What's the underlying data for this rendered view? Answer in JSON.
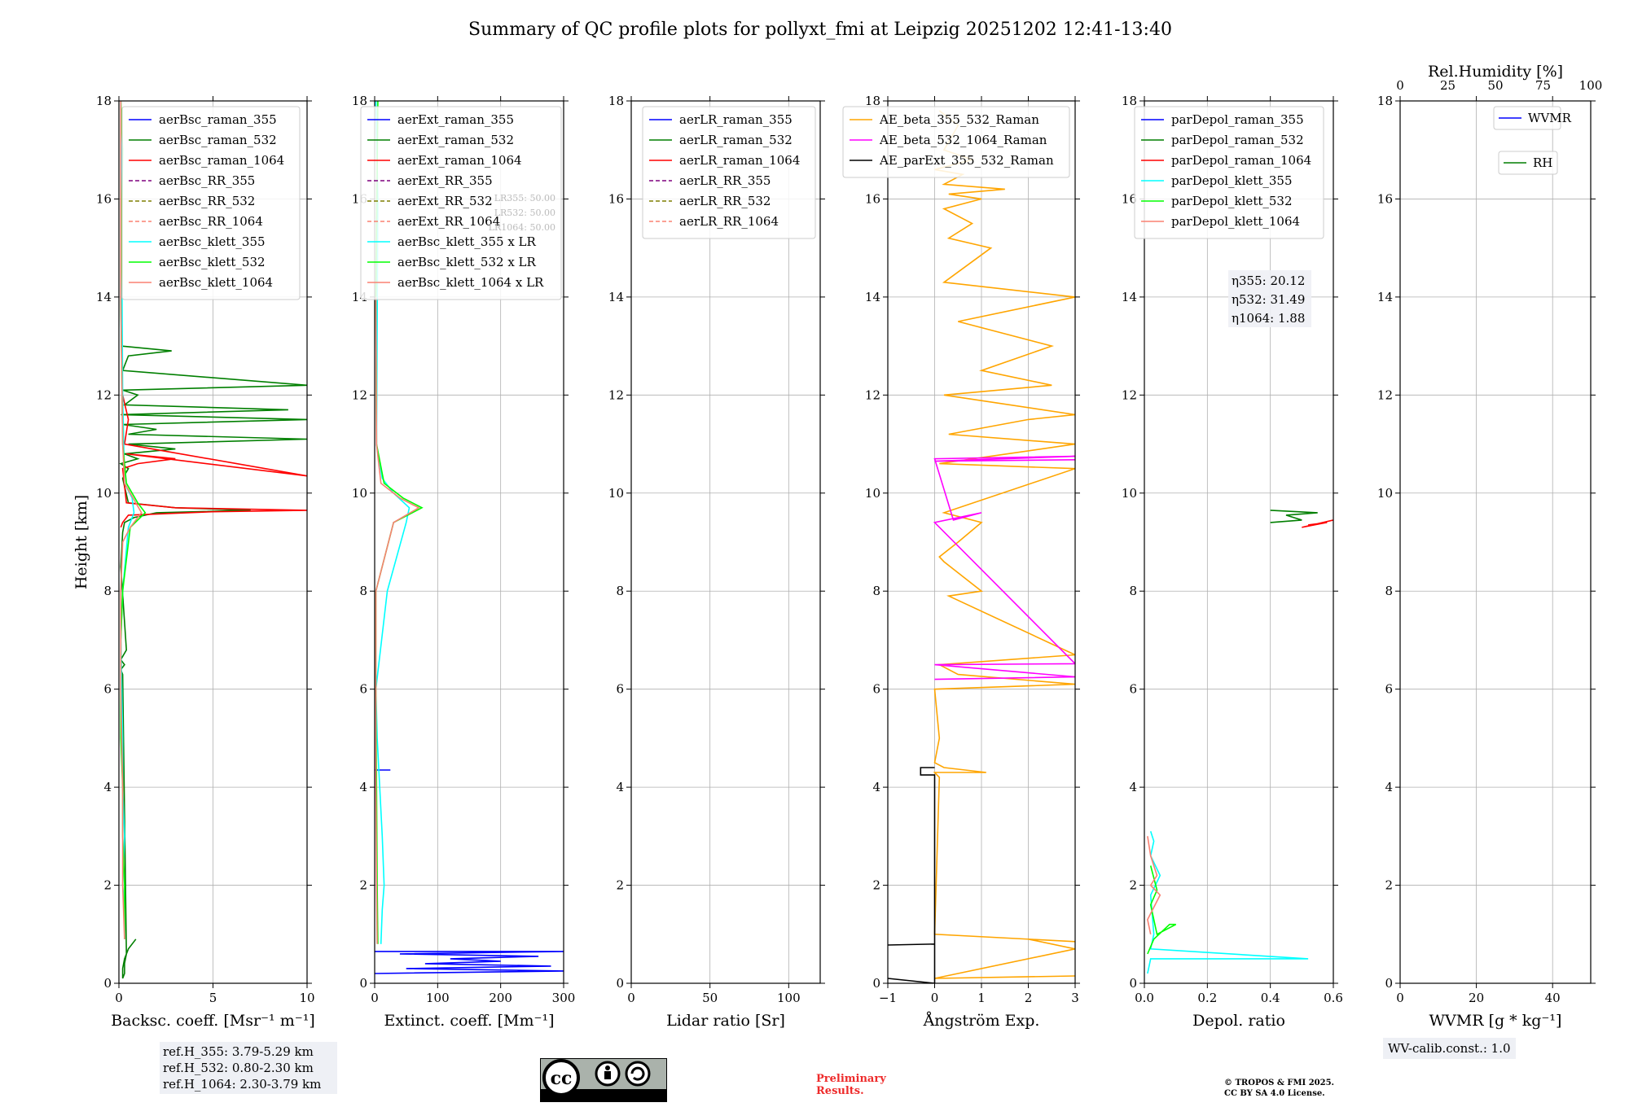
{
  "title": "Summary of QC profile plots for pollyxt_fmi at Leipzig 20251202 12:41-13:40",
  "colors": {
    "blue": "#0000ff",
    "green": "#007f00",
    "red": "#ff0000",
    "purple": "#7f007f",
    "olive": "#7f7f00",
    "salmon": "#fa8072",
    "cyan": "#00ffff",
    "lime": "#00ff00",
    "orange": "#ffa500",
    "magenta": "#ff00ff",
    "black": "#000000"
  },
  "chart_data": [
    {
      "type": "line",
      "id": "bsc",
      "xlabel": "Backsc. coeff. [Msr⁻¹ m⁻¹]",
      "ylabel": "Height [km]",
      "xlim": [
        0,
        10
      ],
      "ylim": [
        0,
        18
      ],
      "xticks": [
        {
          "v": 0,
          "label": "0"
        },
        {
          "v": 5,
          "label": "5"
        },
        {
          "v": 10,
          "label": "10"
        }
      ],
      "legend": [
        "aerBsc_raman_355",
        "aerBsc_raman_532",
        "aerBsc_raman_1064",
        "aerBsc_RR_355",
        "aerBsc_RR_532",
        "aerBsc_RR_1064",
        "aerBsc_klett_355",
        "aerBsc_klett_532",
        "aerBsc_klett_1064"
      ],
      "series": [
        {
          "name": "aerBsc_raman_532",
          "color": "green",
          "x": [
            0.9,
            0.5,
            0.3,
            0.2,
            0.2,
            0.3,
            0.3,
            0.4,
            0.2,
            0.1,
            0.3,
            0.1,
            0.4,
            0.1,
            0.2,
            0.3,
            0.8,
            2,
            7,
            3,
            0.5,
            0.2,
            0.5,
            0.1,
            1,
            0.3,
            3,
            0.5,
            10,
            0.5,
            2,
            0.2,
            10,
            0.1,
            9,
            0.3,
            1,
            0.2,
            10,
            0.2,
            0.5,
            2.8,
            0.1
          ],
          "y": [
            0.9,
            0.7,
            0.5,
            0.3,
            0.1,
            0.2,
            0.4,
            0.6,
            6.3,
            6.4,
            6.5,
            6.6,
            6.8,
            8.5,
            9.2,
            9.4,
            9.5,
            9.6,
            9.65,
            9.7,
            9.8,
            10.3,
            10.5,
            10.6,
            10.7,
            10.8,
            10.9,
            11,
            11.1,
            11.2,
            11.3,
            11.4,
            11.5,
            11.6,
            11.7,
            11.8,
            12,
            12.1,
            12.2,
            12.5,
            12.8,
            12.9,
            13
          ]
        },
        {
          "name": "aerBsc_raman_1064",
          "color": "red",
          "x": [
            0.1,
            0.2,
            0.5,
            5,
            10,
            3,
            0.4,
            0.2,
            1,
            3,
            0.4,
            10,
            0.3,
            0.5,
            0.2
          ],
          "y": [
            9.3,
            9.4,
            9.55,
            9.62,
            9.65,
            9.7,
            9.8,
            10.5,
            10.6,
            10.7,
            10.8,
            10.35,
            11,
            11.5,
            12
          ]
        },
        {
          "name": "aerBsc_klett_355",
          "color": "cyan",
          "x": [
            0.3,
            0.3,
            0.2,
            0.3,
            0.2,
            0.2,
            0.15,
            0.1,
            0.2,
            0.5,
            0.8,
            0.7,
            0.3,
            0.2,
            0.1
          ],
          "y": [
            0.9,
            1.5,
            2,
            3,
            4,
            5,
            6,
            7,
            8,
            9.3,
            9.6,
            9.9,
            10.2,
            12,
            18
          ]
        },
        {
          "name": "aerBsc_klett_532",
          "color": "lime",
          "x": [
            0.3,
            0.3,
            0.2,
            0.2,
            0.1,
            0.1,
            0.1,
            0.2,
            0.6,
            1.4,
            1,
            0.4,
            0.2,
            0.1,
            0.2,
            0.1
          ],
          "y": [
            0.9,
            2,
            3,
            4,
            5,
            6,
            7,
            8,
            9.3,
            9.6,
            9.8,
            10.2,
            11,
            14,
            17,
            18
          ]
        },
        {
          "name": "aerBsc_klett_1064",
          "color": "salmon",
          "x": [
            0.3,
            0.2,
            0.2,
            0.1,
            0.1,
            0.2,
            0.6,
            1.2,
            0.9,
            0.3,
            0.2,
            0.1,
            0.1
          ],
          "y": [
            0.9,
            2,
            4,
            6,
            8,
            9,
            9.3,
            9.6,
            9.8,
            10.2,
            11,
            14,
            18
          ]
        }
      ]
    },
    {
      "type": "line",
      "id": "ext",
      "xlabel": "Extinct. coeff. [Mm⁻¹]",
      "xlim": [
        0,
        300
      ],
      "ylim": [
        0,
        18
      ],
      "xticks": [
        {
          "v": 0,
          "label": "0"
        },
        {
          "v": 100,
          "label": "100"
        },
        {
          "v": 200,
          "label": "200"
        },
        {
          "v": 300,
          "label": "300"
        }
      ],
      "legend": [
        "aerExt_raman_355",
        "aerExt_raman_532",
        "aerExt_raman_1064",
        "aerExt_RR_355",
        "aerExt_RR_532",
        "aerExt_RR_1064",
        "aerBsc_klett_355 x LR",
        "aerBsc_klett_532 x LR",
        "aerBsc_klett_1064 x LR"
      ],
      "lr_notes": [
        "LR355: 50.00",
        "LR532: 50.00",
        "LR1064: 50.00"
      ],
      "series": [
        {
          "name": "aerExt_raman_355",
          "color": "blue",
          "x": [
            0,
            300,
            50,
            280,
            80,
            200,
            120,
            260,
            40,
            300,
            0
          ],
          "y": [
            0.2,
            0.25,
            0.3,
            0.35,
            0.4,
            0.45,
            0.5,
            0.55,
            0.6,
            0.65,
            0.65
          ]
        },
        {
          "name": "aerExt_raman_355b",
          "color": "blue",
          "x": [
            0,
            25
          ],
          "y": [
            4.35,
            4.35
          ]
        },
        {
          "name": "aerBsc_klett_355 x LR",
          "color": "cyan",
          "x": [
            10,
            12,
            15,
            12,
            8,
            4,
            2,
            20,
            50,
            55,
            30,
            12,
            3,
            5,
            2
          ],
          "y": [
            0.8,
            1.5,
            2,
            3,
            4,
            5,
            6,
            8,
            9.4,
            9.7,
            10,
            10.3,
            11,
            16,
            18
          ]
        },
        {
          "name": "aerBsc_klett_532 x LR",
          "color": "lime",
          "x": [
            5,
            4,
            3,
            2,
            2,
            30,
            75,
            45,
            15,
            3,
            2,
            5
          ],
          "y": [
            0.8,
            2,
            4,
            6,
            8,
            9.4,
            9.7,
            9.9,
            10.2,
            11,
            14,
            18
          ]
        },
        {
          "name": "aerBsc_klett_1064 x LR",
          "color": "salmon",
          "x": [
            4,
            3,
            2,
            2,
            2,
            30,
            70,
            40,
            10,
            3,
            2
          ],
          "y": [
            0.8,
            2,
            4,
            6,
            8,
            9.4,
            9.7,
            9.9,
            10.2,
            11,
            14
          ]
        }
      ]
    },
    {
      "type": "line",
      "id": "lr",
      "xlabel": "Lidar ratio [Sr]",
      "xlim": [
        0,
        120
      ],
      "ylim": [
        0,
        18
      ],
      "xticks": [
        {
          "v": 0,
          "label": "0"
        },
        {
          "v": 50,
          "label": "50"
        },
        {
          "v": 100,
          "label": "100"
        }
      ],
      "legend": [
        "aerLR_raman_355",
        "aerLR_raman_532",
        "aerLR_raman_1064",
        "aerLR_RR_355",
        "aerLR_RR_532",
        "aerLR_RR_1064"
      ],
      "series": []
    },
    {
      "type": "line",
      "id": "ae",
      "xlabel": "Ångström Exp.",
      "xlim": [
        -1,
        3
      ],
      "ylim": [
        0,
        18
      ],
      "xticks": [
        {
          "v": -1,
          "label": "−1"
        },
        {
          "v": 0,
          "label": "0"
        },
        {
          "v": 1,
          "label": "1"
        },
        {
          "v": 2,
          "label": "2"
        },
        {
          "v": 3,
          "label": "3"
        }
      ],
      "legend": [
        "AE_beta_355_532_Raman",
        "AE_beta_532_1064_Raman",
        "AE_parExt_355_532_Raman"
      ],
      "series": [
        {
          "name": "AE_beta_355_532_Raman",
          "color": "orange",
          "x": [
            3,
            0,
            3,
            2,
            3,
            0,
            0.1,
            0,
            1.1,
            0.2,
            0,
            0.1,
            0,
            3,
            0.5,
            0.1,
            3,
            0.3,
            1,
            0.2,
            0.1,
            0.5,
            1,
            0.2,
            3,
            0.1,
            3,
            0.3,
            2,
            3,
            0.2,
            2.5,
            1,
            2.5,
            0.5,
            3,
            0.2,
            1.2,
            0.3,
            0.8,
            0.2,
            1,
            0.3,
            1.5,
            0.2,
            0.6,
            0,
            0.8,
            0.2,
            0.5,
            0.1
          ],
          "y": [
            0.15,
            0.1,
            0.7,
            0.9,
            0.85,
            1.0,
            4.2,
            4.3,
            4.3,
            4.4,
            4.5,
            5,
            6.0,
            6.1,
            6.3,
            6.5,
            6.7,
            7.9,
            8.0,
            8.6,
            8.7,
            9.0,
            9.4,
            9.6,
            10.5,
            10.6,
            11,
            11.2,
            11.5,
            11.6,
            12.0,
            12.2,
            12.5,
            13.0,
            13.5,
            14.0,
            14.3,
            15.0,
            15.2,
            15.5,
            15.8,
            16.0,
            16.1,
            16.2,
            16.3,
            16.5,
            16.6,
            16.8,
            17,
            17.5,
            17.8
          ]
        },
        {
          "name": "AE_beta_532_1064_Raman",
          "color": "magenta",
          "x": [
            0,
            3,
            0,
            3,
            0,
            1,
            0.4,
            0,
            3,
            0,
            3
          ],
          "y": [
            6.2,
            6.25,
            6.5,
            6.52,
            9.4,
            9.6,
            9.45,
            10.7,
            10.75,
            10.65,
            10.68
          ]
        },
        {
          "name": "AE_parExt_355_532_Raman",
          "color": "black",
          "x": [
            0,
            -0.3,
            -0.3,
            0,
            0,
            -1,
            0,
            0,
            -1
          ],
          "y": [
            4.4,
            4.4,
            4.25,
            4.25,
            0.8,
            0.78,
            0.8,
            0.0,
            0.1
          ]
        }
      ]
    },
    {
      "type": "line",
      "id": "depol",
      "xlabel": "Depol. ratio",
      "xlim": [
        0,
        0.6
      ],
      "ylim": [
        0,
        18
      ],
      "xticks": [
        {
          "v": 0,
          "label": "0.0"
        },
        {
          "v": 0.2,
          "label": "0.2"
        },
        {
          "v": 0.4,
          "label": "0.4"
        },
        {
          "v": 0.6,
          "label": "0.6"
        }
      ],
      "legend": [
        "parDepol_raman_355",
        "parDepol_raman_532",
        "parDepol_raman_1064",
        "parDepol_klett_355",
        "parDepol_klett_532",
        "parDepol_klett_1064"
      ],
      "eta": [
        "η355: 20.12",
        "η532: 31.49",
        "η1064: 1.88"
      ],
      "series": [
        {
          "name": "parDepol_klett_355",
          "color": "cyan",
          "x": [
            0.01,
            0.02,
            0.52,
            0.02,
            0.03,
            0.02,
            0.05,
            0.02,
            0.03,
            0.02
          ],
          "y": [
            0.2,
            0.5,
            0.5,
            0.7,
            1,
            1.8,
            2.2,
            2.6,
            2.9,
            3.1
          ]
        },
        {
          "name": "parDepol_klett_532",
          "color": "lime",
          "x": [
            0.01,
            0.03,
            0.08,
            0.1,
            0.04,
            0.02,
            0.04,
            0.02
          ],
          "y": [
            0.6,
            0.9,
            1.2,
            1.2,
            1.0,
            1.6,
            1.9,
            2.4
          ]
        },
        {
          "name": "parDepol_klett_1064",
          "color": "salmon",
          "x": [
            0.02,
            0.01,
            0.05,
            0.02,
            0.04,
            0.02,
            0.01
          ],
          "y": [
            1.0,
            1.3,
            1.8,
            2.0,
            2.2,
            2.6,
            3.0
          ]
        },
        {
          "name": "parDepol_raman_532",
          "color": "green",
          "x": [
            0.4,
            0.5,
            0.45,
            0.55,
            0.4
          ],
          "y": [
            9.4,
            9.45,
            9.55,
            9.6,
            9.65
          ]
        },
        {
          "name": "parDepol_raman_1064",
          "color": "red",
          "x": [
            0.52,
            0.58,
            0.5,
            0.6
          ],
          "y": [
            9.35,
            9.4,
            9.3,
            9.45
          ]
        }
      ]
    },
    {
      "type": "line",
      "id": "wv",
      "xlabel": "WVMR [g * kg⁻¹]",
      "x2label": "Rel.Humidity [%]",
      "xlim": [
        0,
        50
      ],
      "x2lim": [
        0,
        100
      ],
      "ylim": [
        0,
        18
      ],
      "xticks": [
        {
          "v": 0,
          "label": "0"
        },
        {
          "v": 20,
          "label": "20"
        },
        {
          "v": 40,
          "label": "40"
        }
      ],
      "x2ticks": [
        {
          "v": 0,
          "label": "0"
        },
        {
          "v": 25,
          "label": "25"
        },
        {
          "v": 50,
          "label": "50"
        },
        {
          "v": 75,
          "label": "75"
        },
        {
          "v": 100,
          "label": "100"
        }
      ],
      "legend": [
        "WVMR",
        "RH"
      ],
      "series": []
    }
  ],
  "yticks": [
    0,
    2,
    4,
    6,
    8,
    10,
    12,
    14,
    16,
    18
  ],
  "refbox": [
    "ref.H_355: 3.79-5.29 km",
    "ref.H_532: 0.80-2.30 km",
    "ref.H_1064: 2.30-3.79 km"
  ],
  "wvcalib": "WV-calib.const.: 1.0",
  "prelim": [
    "Preliminary",
    "Results."
  ],
  "copyright": [
    "© TROPOS & FMI 2025.",
    "CC BY SA 4.0 License."
  ],
  "cc_labels": [
    "BY",
    "SA"
  ]
}
